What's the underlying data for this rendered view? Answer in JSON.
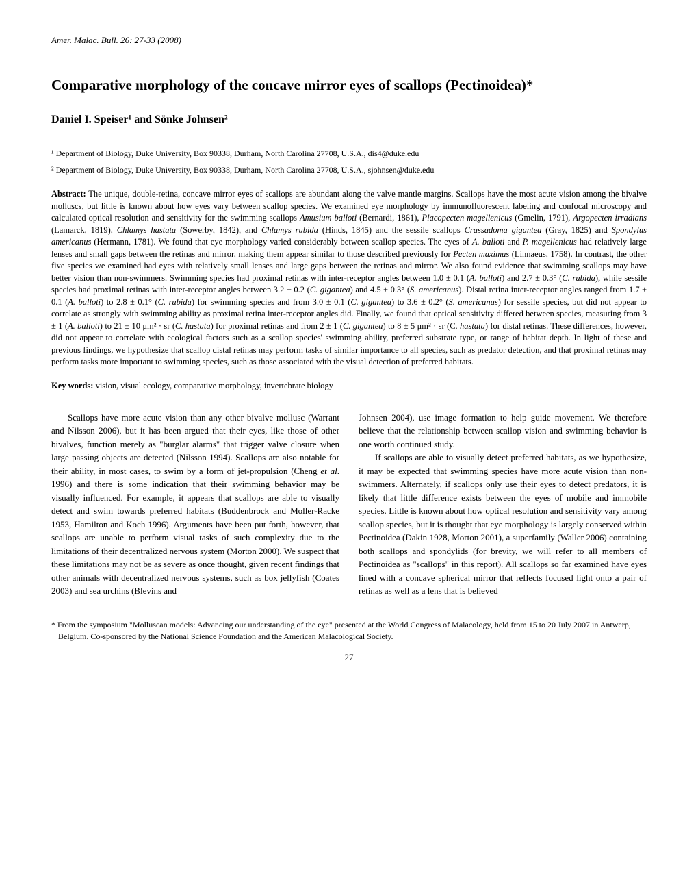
{
  "journal_header": "Amer. Malac. Bull. 26: 27-33 (2008)",
  "title": "Comparative morphology of the concave mirror eyes of scallops (Pectinoidea)*",
  "authors": "Daniel I. Speiser¹ and Sönke Johnsen²",
  "affiliations": [
    "¹ Department of Biology, Duke University, Box 90338, Durham, North Carolina 27708, U.S.A., dis4@duke.edu",
    "² Department of Biology, Duke University, Box 90338, Durham, North Carolina 27708, U.S.A., sjohnsen@duke.edu"
  ],
  "abstract_label": "Abstract:",
  "abstract_text": " The unique, double-retina, concave mirror eyes of scallops are abundant along the valve mantle margins. Scallops have the most acute vision among the bivalve molluscs, but little is known about how eyes vary between scallop species. We examined eye morphology by immunofluorescent labeling and confocal microscopy and calculated optical resolution and sensitivity for the swimming scallops <i>Amusium balloti</i> (Bernardi, 1861), <i>Placopecten magellenicus</i> (Gmelin, 1791), <i>Argopecten irradians</i> (Lamarck, 1819), <i>Chlamys hastata</i> (Sowerby, 1842), and <i>Chlamys rubida</i> (Hinds, 1845) and the sessile scallops <i>Crassadoma gigantea</i> (Gray, 1825) and <i>Spondylus americanus</i> (Hermann, 1781). We found that eye morphology varied considerably between scallop species. The eyes of <i>A. balloti</i> and <i>P. magellenicus</i> had relatively large lenses and small gaps between the retinas and mirror, making them appear similar to those described previously for <i>Pecten maximus</i> (Linnaeus, 1758). In contrast, the other five species we examined had eyes with relatively small lenses and large gaps between the retinas and mirror. We also found evidence that swimming scallops may have better vision than non-swimmers. Swimming species had proximal retinas with inter-receptor angles between 1.0 ± 0.1 (<i>A. balloti</i>) and 2.7 ± 0.3° (<i>C. rubida</i>), while sessile species had proximal retinas with inter-receptor angles between 3.2 ± 0.2 (<i>C. gigantea</i>) and 4.5 ± 0.3° (<i>S. americanus</i>). Distal retina inter-receptor angles ranged from 1.7 ± 0.1 (<i>A. balloti</i>) to 2.8 ± 0.1° (<i>C. rubida</i>) for swimming species and from 3.0 ± 0.1 (<i>C. gigantea</i>) to 3.6 ± 0.2° (<i>S. americanus</i>) for sessile species, but did not appear to correlate as strongly with swimming ability as proximal retina inter-receptor angles did. Finally, we found that optical sensitivity differed between species, measuring from 3 ± 1 (<i>A. balloti</i>) to 21 ± 10 μm² · sr (<i>C. hastata</i>) for proximal retinas and from 2 ± 1 (<i>C. gigantea</i>) to 8 ± 5 μm² · sr (C. <i>hastata</i>) for distal retinas. These differences, however, did not appear to correlate with ecological factors such as a scallop species' swimming ability, preferred substrate type, or range of habitat depth. In light of these and previous findings, we hypothesize that scallop distal retinas may perform tasks of similar importance to all species, such as predator detection, and that proximal retinas may perform tasks more important to swimming species, such as those associated with the visual detection of preferred habitats.",
  "keywords_label": "Key words:",
  "keywords_text": " vision, visual ecology, comparative morphology, invertebrate biology",
  "body_col1": "Scallops have more acute vision than any other bivalve mollusc (Warrant and Nilsson 2006), but it has been argued that their eyes, like those of other bivalves, function merely as \"burglar alarms\" that trigger valve closure when large passing objects are detected (Nilsson 1994). Scallops are also notable for their ability, in most cases, to swim by a form of jet-propulsion (Cheng <i>et al</i>. 1996) and there is some indication that their swimming behavior may be visually influenced. For example, it appears that scallops are able to visually detect and swim towards preferred habitats (Buddenbrock and Moller-Racke 1953, Hamilton and Koch 1996). Arguments have been put forth, however, that scallops are unable to perform visual tasks of such complexity due to the limitations of their decentralized nervous system (Morton 2000). We suspect that these limitations may not be as severe as once thought, given recent findings that other animals with decentralized nervous systems, such as box jellyfish (Coates 2003) and sea urchins (Blevins and",
  "body_col2_p1": "Johnsen 2004), use image formation to help guide movement. We therefore believe that the relationship between scallop vision and swimming behavior is one worth continued study.",
  "body_col2_p2": "If scallops are able to visually detect preferred habitats, as we hypothesize, it may be expected that swimming species have more acute vision than non-swimmers. Alternately, if scallops only use their eyes to detect predators, it is likely that little difference exists between the eyes of mobile and immobile species. Little is known about how optical resolution and sensitivity vary among scallop species, but it is thought that eye morphology is largely conserved within Pectinoidea (Dakin 1928, Morton 2001), a superfamily (Waller 2006) containing both scallops and spondylids (for brevity, we will refer to all members of Pectinoidea as \"scallops\" in this report). All scallops so far examined have eyes lined with a concave spherical mirror that reflects focused light onto a pair of retinas as well as a lens that is believed",
  "footnote": "* From the symposium \"Molluscan models: Advancing our understanding of the eye\" presented at the World Congress of Malacology, held from 15 to 20 July 2007 in Antwerp, Belgium. Co-sponsored by the National Science Foundation and the American Malacological Society.",
  "page_number": "27",
  "colors": {
    "text": "#000000",
    "background": "#ffffff"
  },
  "typography": {
    "journal_header_fontsize": 13,
    "title_fontsize": 21,
    "authors_fontsize": 16,
    "affiliation_fontsize": 12,
    "abstract_fontsize": 12.5,
    "body_fontsize": 13,
    "footnote_fontsize": 12
  }
}
